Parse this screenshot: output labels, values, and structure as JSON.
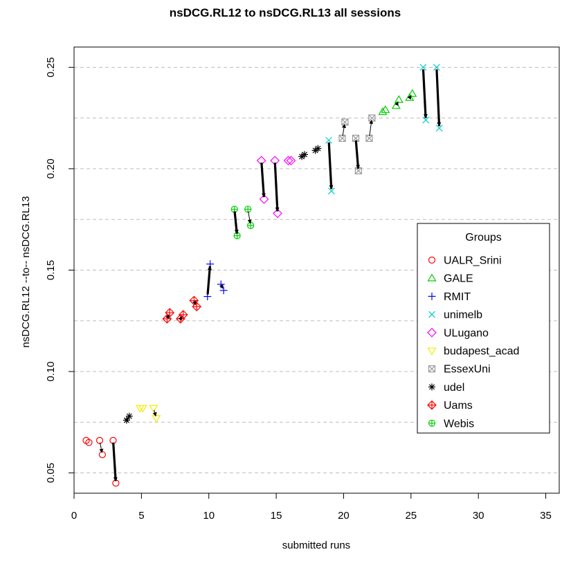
{
  "chart_data": {
    "type": "scatter",
    "title": "nsDCG.RL12 to nsDCG.RL13 all sessions",
    "xlabel": "submitted runs",
    "ylabel": "nsDCG.RL12 --to-- nsDCG.RL13",
    "xlim": [
      0,
      36
    ],
    "ylim": [
      0.04,
      0.26
    ],
    "xticks": [
      0,
      5,
      10,
      15,
      20,
      25,
      30,
      35
    ],
    "yticks": [
      0.05,
      0.1,
      0.15,
      0.2,
      0.25
    ],
    "ytick_labels": [
      "0.05",
      "0.10",
      "0.15",
      "0.20",
      "0.25"
    ],
    "grid": "horizontal dashed",
    "legend": {
      "title": "Groups",
      "placement": "right",
      "entries": [
        {
          "name": "UALR_Srini",
          "color": "#FF0000",
          "marker": "circle"
        },
        {
          "name": "GALE",
          "color": "#00CD00",
          "marker": "triangle-up"
        },
        {
          "name": "RMIT",
          "color": "#0000FF",
          "marker": "plus"
        },
        {
          "name": "unimelb",
          "color": "#00CDCD",
          "marker": "cross"
        },
        {
          "name": "ULugano",
          "color": "#FF00FF",
          "marker": "diamond"
        },
        {
          "name": "budapest_acad",
          "color": "#EEEE00",
          "marker": "triangle-down"
        },
        {
          "name": "EssexUni",
          "color": "#999999",
          "marker": "square-x"
        },
        {
          "name": "udel",
          "color": "#000000",
          "marker": "asterisk"
        },
        {
          "name": "Uams",
          "color": "#FF0000",
          "marker": "diamond-plus"
        },
        {
          "name": "Webis",
          "color": "#00CD00",
          "marker": "circle-plus"
        }
      ]
    },
    "runs": [
      {
        "group": "UALR_Srini",
        "x": 1,
        "from": 0.066,
        "to": 0.065
      },
      {
        "group": "UALR_Srini",
        "x": 2,
        "from": 0.066,
        "to": 0.059
      },
      {
        "group": "UALR_Srini",
        "x": 3,
        "from": 0.066,
        "to": 0.045
      },
      {
        "group": "udel",
        "x": 4,
        "from": 0.076,
        "to": 0.078
      },
      {
        "group": "budapest_acad",
        "x": 5,
        "from": 0.082,
        "to": 0.082
      },
      {
        "group": "budapest_acad",
        "x": 6,
        "from": 0.082,
        "to": 0.077
      },
      {
        "group": "Uams",
        "x": 7,
        "from": 0.126,
        "to": 0.129
      },
      {
        "group": "Uams",
        "x": 8,
        "from": 0.126,
        "to": 0.128
      },
      {
        "group": "Uams",
        "x": 9,
        "from": 0.135,
        "to": 0.132
      },
      {
        "group": "RMIT",
        "x": 10,
        "from": 0.137,
        "to": 0.153
      },
      {
        "group": "RMIT",
        "x": 11,
        "from": 0.143,
        "to": 0.14
      },
      {
        "group": "Webis",
        "x": 12,
        "from": 0.18,
        "to": 0.167
      },
      {
        "group": "Webis",
        "x": 13,
        "from": 0.18,
        "to": 0.172
      },
      {
        "group": "ULugano",
        "x": 14,
        "from": 0.204,
        "to": 0.185
      },
      {
        "group": "ULugano",
        "x": 15,
        "from": 0.204,
        "to": 0.178
      },
      {
        "group": "ULugano",
        "x": 16,
        "from": 0.204,
        "to": 0.204
      },
      {
        "group": "udel",
        "x": 17,
        "from": 0.206,
        "to": 0.207
      },
      {
        "group": "udel",
        "x": 18,
        "from": 0.209,
        "to": 0.21
      },
      {
        "group": "unimelb",
        "x": 19,
        "from": 0.214,
        "to": 0.189
      },
      {
        "group": "EssexUni",
        "x": 20,
        "from": 0.215,
        "to": 0.223
      },
      {
        "group": "EssexUni",
        "x": 21,
        "from": 0.215,
        "to": 0.199
      },
      {
        "group": "EssexUni",
        "x": 22,
        "from": 0.215,
        "to": 0.225
      },
      {
        "group": "GALE",
        "x": 23,
        "from": 0.228,
        "to": 0.229
      },
      {
        "group": "GALE",
        "x": 24,
        "from": 0.231,
        "to": 0.234
      },
      {
        "group": "GALE",
        "x": 25,
        "from": 0.235,
        "to": 0.237
      },
      {
        "group": "unimelb",
        "x": 26,
        "from": 0.25,
        "to": 0.224
      },
      {
        "group": "unimelb",
        "x": 27,
        "from": 0.25,
        "to": 0.22
      }
    ]
  }
}
